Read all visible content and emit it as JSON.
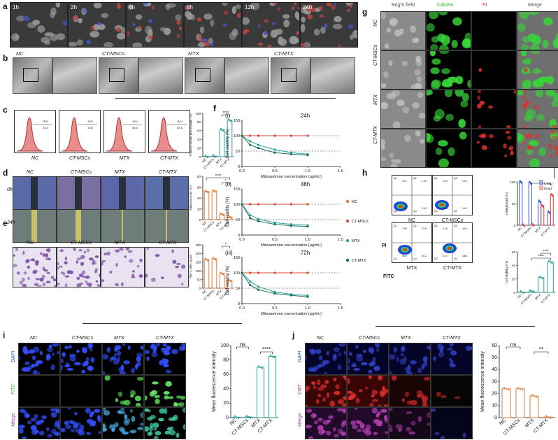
{
  "panels": {
    "a": {
      "label": "a",
      "timepoints": [
        "1h",
        "2h",
        "4h",
        "8h",
        "12h",
        "24h"
      ]
    },
    "b": {
      "label": "b",
      "groups": [
        "NC",
        "CT-MSCs",
        "MTX",
        "CT-MTX"
      ]
    },
    "c": {
      "label": "c",
      "groups": [
        "NC",
        "CT-MSCs",
        "MTX",
        "CT-MTX"
      ],
      "flow_gates": [
        "ROI",
        "ROI",
        "ROI",
        "ROI"
      ],
      "flow_values": [
        "0.13",
        "3.16",
        "65.6",
        "83.6"
      ]
    },
    "d": {
      "label": "d",
      "groups": [
        "NC",
        "CT-MSCs",
        "MTX",
        "CT-MTX"
      ],
      "rows": [
        "0h",
        "24h"
      ]
    },
    "e": {
      "label": "e",
      "groups": [
        "NC",
        "CT-MSCs",
        "MTX",
        "CT-MTX"
      ]
    },
    "f": {
      "label": "f",
      "subpanels": [
        "(i)",
        "(ii)",
        "(iii)"
      ],
      "times": [
        "24h",
        "48h",
        "72h"
      ],
      "xlabel": "Mitoxantrone concentration (μg/mL)",
      "ylabel": "Cell viability (%)",
      "legend": [
        "NC",
        "CT-MSCs",
        "MTX",
        "CT-MTX"
      ]
    },
    "g": {
      "label": "g",
      "columns": [
        "Bright field",
        "Calcein",
        "PI",
        "Merge"
      ],
      "rows": [
        "NC",
        "CT-MSCs",
        "MTX",
        "CT-MTX"
      ]
    },
    "h": {
      "label": "h",
      "groups": [
        "NC",
        "CT-MSCs",
        "MTX",
        "CT-MTX"
      ],
      "quadrants": [
        [
          "0.11",
          "1.22",
          "98.2",
          "0.43"
        ],
        [
          "10.0",
          "2.12",
          "73.6",
          "14.3"
        ],
        [
          "7.98",
          "21.8",
          "40.0",
          "30.2"
        ],
        [
          "4.46",
          "44.6",
          "47.1",
          "3.88"
        ]
      ],
      "qnames": [
        "Q1",
        "Q2",
        "Q3",
        "Q4"
      ],
      "xaxis": "FITC",
      "yaxis": "PI"
    },
    "i": {
      "label": "i",
      "groups": [
        "NC",
        "CT-MSCs",
        "MTX",
        "CT-MTX"
      ],
      "rows": [
        "DAPI",
        "FITC",
        "Merge"
      ]
    },
    "j": {
      "label": "j",
      "groups": [
        "NC",
        "CT-MSCs",
        "MTX",
        "CT-MTX"
      ],
      "rows": [
        "DAPI",
        "CRT",
        "Merge"
      ]
    }
  },
  "chart_data": [
    {
      "id": "c",
      "type": "bar",
      "categories": [
        "NC",
        "CT-MSCs",
        "MTX",
        "CT-MTX"
      ],
      "values": [
        0.5,
        1.5,
        62,
        84
      ],
      "ylabel": "Positive intake percentage (%)",
      "ylim": [
        0,
        100
      ],
      "yticks": [
        "0",
        "20",
        "40",
        "60",
        "80",
        "100"
      ],
      "annotations": [
        {
          "text": "****",
          "from": 2,
          "to": 3
        }
      ],
      "color": "#2aa198"
    },
    {
      "id": "d",
      "type": "bar",
      "categories": [
        "NC",
        "CT-MSCs",
        "MTX",
        "CT-MTX"
      ],
      "values": [
        52,
        53,
        10,
        5
      ],
      "ylabel": "Migration rate (%)",
      "ylim": [
        0,
        80
      ],
      "yticks": [
        "0",
        "20",
        "40",
        "60",
        "80"
      ],
      "annotations": [
        {
          "text": "****",
          "from": 0,
          "to": 3
        },
        {
          "text": "*",
          "from": 2,
          "to": 3
        }
      ],
      "color": "#e07b39"
    },
    {
      "id": "e",
      "type": "bar",
      "categories": [
        "NC",
        "CT-MSCs",
        "MTX",
        "CT-MTX"
      ],
      "values": [
        165,
        170,
        85,
        45
      ],
      "ylabel": "RM-1 cells count",
      "ylim": [
        0,
        250
      ],
      "yticks": [
        "0",
        "50",
        "100",
        "150",
        "200",
        "250"
      ],
      "annotations": [
        {
          "text": "*",
          "from": 2,
          "to": 3
        }
      ],
      "color": "#e07b39"
    },
    {
      "id": "f-i",
      "type": "line",
      "title": "24h",
      "x": [
        0,
        0.125,
        0.25,
        0.5,
        0.75,
        1.0
      ],
      "series": [
        {
          "name": "NC",
          "values": [
            100,
            100,
            100,
            100,
            100,
            100
          ],
          "color": "#e07b39"
        },
        {
          "name": "CT-MSCs",
          "values": [
            100,
            100,
            100,
            100,
            100,
            100
          ],
          "color": "#d44a3a"
        },
        {
          "name": "MTX",
          "values": [
            100,
            82,
            70,
            55,
            45,
            40
          ],
          "color": "#2aa198"
        },
        {
          "name": "CT-MTX",
          "values": [
            100,
            70,
            60,
            45,
            40,
            37
          ],
          "color": "#1f6e5c"
        }
      ],
      "xlim": [
        0,
        1.5
      ],
      "ylim": [
        0,
        150
      ],
      "xticks": [
        "0.0",
        "0.5",
        "1.0",
        "1.5"
      ],
      "yticks": [
        "0",
        "50",
        "100",
        "150"
      ]
    },
    {
      "id": "f-ii",
      "type": "line",
      "title": "48h",
      "x": [
        0,
        0.125,
        0.25,
        0.5,
        0.75,
        1.0
      ],
      "series": [
        {
          "name": "NC",
          "values": [
            100,
            100,
            100,
            100,
            100,
            100
          ],
          "color": "#e07b39"
        },
        {
          "name": "CT-MSCs",
          "values": [
            100,
            100,
            100,
            100,
            100,
            100
          ],
          "color": "#d44a3a"
        },
        {
          "name": "MTX",
          "values": [
            100,
            65,
            52,
            40,
            35,
            32
          ],
          "color": "#2aa198"
        },
        {
          "name": "CT-MTX",
          "values": [
            100,
            55,
            45,
            35,
            30,
            28
          ],
          "color": "#1f6e5c"
        }
      ],
      "xlim": [
        0,
        1.5
      ],
      "ylim": [
        0,
        150
      ],
      "xticks": [
        "0.0",
        "0.5",
        "1.0",
        "1.5"
      ],
      "yticks": [
        "0",
        "50",
        "100",
        "150"
      ]
    },
    {
      "id": "f-iii",
      "type": "line",
      "title": "72h",
      "x": [
        0,
        0.125,
        0.25,
        0.5,
        0.75,
        1.0
      ],
      "series": [
        {
          "name": "NC",
          "values": [
            100,
            100,
            100,
            100,
            100,
            100
          ],
          "color": "#e07b39"
        },
        {
          "name": "CT-MSCs",
          "values": [
            100,
            100,
            100,
            100,
            100,
            100
          ],
          "color": "#d44a3a"
        },
        {
          "name": "MTX",
          "values": [
            100,
            72,
            55,
            38,
            30,
            26
          ],
          "color": "#2aa198"
        },
        {
          "name": "CT-MTX",
          "values": [
            100,
            60,
            45,
            33,
            27,
            22
          ],
          "color": "#1f6e5c"
        }
      ],
      "xlim": [
        0,
        1.5
      ],
      "ylim": [
        0,
        150
      ],
      "xticks": [
        "0.0",
        "0.5",
        "1.0",
        "1.5"
      ],
      "yticks": [
        "0",
        "50",
        "100",
        "150"
      ]
    },
    {
      "id": "h-living",
      "type": "bar",
      "categories": [
        "NC",
        "CT-MSCs",
        "MTX",
        "CT-MTX"
      ],
      "series": [
        {
          "name": "Living",
          "values": [
            100,
            98,
            55,
            30
          ],
          "color": "#3b55d9"
        },
        {
          "name": "Dead",
          "values": [
            0,
            1,
            45,
            70
          ],
          "color": "#e23b3b"
        }
      ],
      "ylabel": "Living/Dead (%)",
      "ylim": [
        0,
        100
      ],
      "yticks": [
        "0",
        "50",
        "100"
      ],
      "annotations": [
        {
          "text": "***"
        }
      ]
    },
    {
      "id": "h-viab",
      "type": "bar",
      "categories": [
        "NC",
        "CT-MSCs",
        "MTX",
        "CT-MTX"
      ],
      "values": [
        0.5,
        2,
        22,
        45
      ],
      "ylabel": "Cell viability (%)",
      "ylim": [
        0,
        60
      ],
      "yticks": [
        "0",
        "20",
        "40",
        "60"
      ],
      "annotations": [
        {
          "text": "****"
        },
        {
          "text": "****"
        }
      ],
      "color": "#2aa198"
    },
    {
      "id": "i",
      "type": "bar",
      "categories": [
        "NC",
        "CT-MSCs",
        "MTX",
        "CT-MTX"
      ],
      "values": [
        0.5,
        1,
        70,
        85
      ],
      "ylabel": "Mean fluorescence intensity",
      "ylim": [
        0,
        100
      ],
      "yticks": [
        "0",
        "20",
        "40",
        "60",
        "80",
        "100"
      ],
      "annotations": [
        {
          "text": "ns",
          "from": 0,
          "to": 1
        },
        {
          "text": "****",
          "from": 2,
          "to": 3
        }
      ],
      "color": "#2aa198"
    },
    {
      "id": "j",
      "type": "bar",
      "categories": [
        "NC",
        "CT-MSCs",
        "MTX",
        "CT-MTX"
      ],
      "values": [
        24,
        24,
        18,
        0.5
      ],
      "ylabel": "Mean fluorescence intensity",
      "ylim": [
        0,
        60
      ],
      "yticks": [
        "0",
        "10",
        "20",
        "30",
        "40",
        "50",
        "60"
      ],
      "annotations": [
        {
          "text": "ns",
          "from": 0,
          "to": 1
        },
        {
          "text": "**",
          "from": 2,
          "to": 3
        }
      ],
      "color": "#e07b39"
    }
  ]
}
